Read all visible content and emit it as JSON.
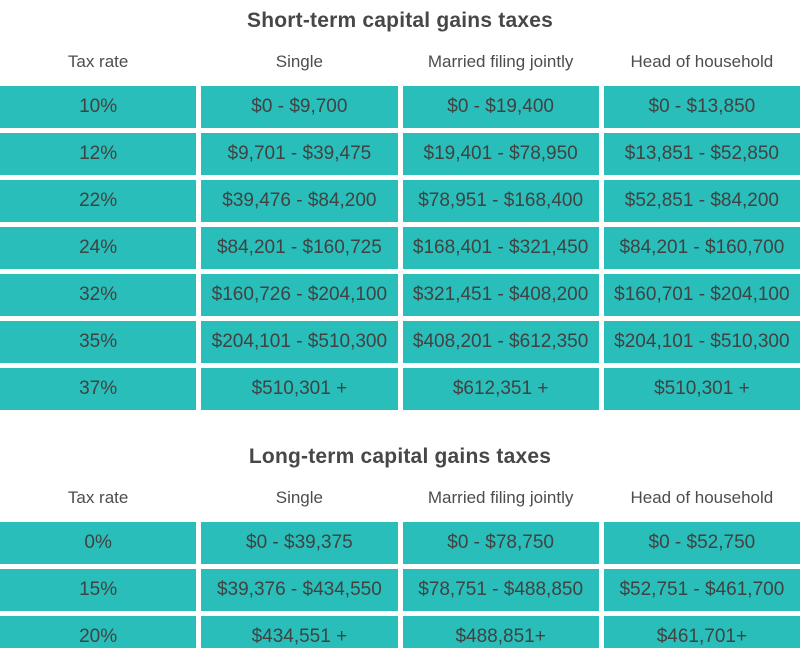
{
  "colors": {
    "cell_background": "#29beb9",
    "cell_text": "#414242",
    "header_text": "#4d4d4d",
    "title_text": "#474747",
    "page_background": "#ffffff"
  },
  "chart_data": [
    {
      "type": "table",
      "title": "Short-term capital gains taxes",
      "columns": [
        "Tax rate",
        "Single",
        "Married filing jointly",
        "Head of household"
      ],
      "rows": [
        [
          "10%",
          "$0 - $9,700",
          "$0 - $19,400",
          "$0 - $13,850"
        ],
        [
          "12%",
          "$9,701 - $39,475",
          "$19,401 - $78,950",
          "$13,851 - $52,850"
        ],
        [
          "22%",
          "$39,476 - $84,200",
          "$78,951 - $168,400",
          "$52,851 - $84,200"
        ],
        [
          "24%",
          "$84,201 - $160,725",
          "$168,401 - $321,450",
          "$84,201 - $160,700"
        ],
        [
          "32%",
          "$160,726 - $204,100",
          "$321,451 - $408,200",
          "$160,701 - $204,100"
        ],
        [
          "35%",
          "$204,101 - $510,300",
          "$408,201 - $612,350",
          "$204,101 - $510,300"
        ],
        [
          "37%",
          "$510,301 +",
          "$612,351 +",
          "$510,301 +"
        ]
      ]
    },
    {
      "type": "table",
      "title": "Long-term capital gains taxes",
      "columns": [
        "Tax rate",
        "Single",
        "Married filing jointly",
        "Head of household"
      ],
      "rows": [
        [
          "0%",
          "$0 - $39,375",
          "$0 - $78,750",
          "$0 - $52,750"
        ],
        [
          "15%",
          "$39,376 - $434,550",
          "$78,751 - $488,850",
          "$52,751 - $461,700"
        ],
        [
          "20%",
          "$434,551 +",
          "$488,851+",
          "$461,701+"
        ]
      ]
    }
  ]
}
